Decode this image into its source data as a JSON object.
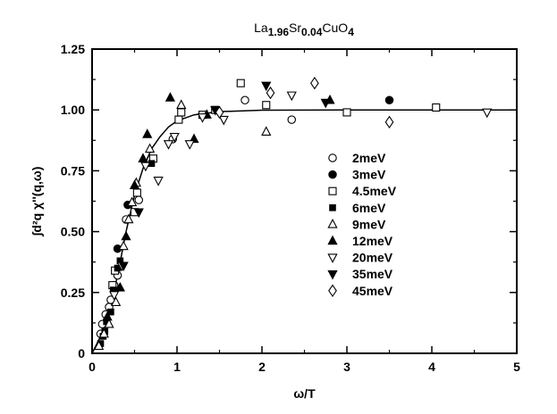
{
  "chart_data": {
    "type": "scatter",
    "title": {
      "parts": [
        {
          "text": "La",
          "sub": false
        },
        {
          "text": "1.96",
          "sub": true
        },
        {
          "text": "Sr",
          "sub": false
        },
        {
          "text": "0.04",
          "sub": true
        },
        {
          "text": "CuO",
          "sub": false
        },
        {
          "text": "4",
          "sub": true
        }
      ]
    },
    "xlabel": "ω/T",
    "ylabel": "∫d²q χ''(q,ω)",
    "xlim": [
      0,
      5
    ],
    "ylim": [
      0,
      1.25
    ],
    "x_ticks": [
      "0",
      "1",
      "2",
      "3",
      "4",
      "5"
    ],
    "y_ticks": [
      "0",
      "0.25",
      "0.50",
      "0.75",
      "1.00",
      "1.25"
    ],
    "grid": false,
    "legend_position": "right",
    "fit_curve": {
      "points": [
        [
          0,
          0
        ],
        [
          0.1,
          0.07
        ],
        [
          0.2,
          0.17
        ],
        [
          0.3,
          0.32
        ],
        [
          0.4,
          0.5
        ],
        [
          0.5,
          0.65
        ],
        [
          0.6,
          0.76
        ],
        [
          0.7,
          0.84
        ],
        [
          0.8,
          0.89
        ],
        [
          0.9,
          0.93
        ],
        [
          1.0,
          0.955
        ],
        [
          1.2,
          0.98
        ],
        [
          1.5,
          0.993
        ],
        [
          2.0,
          0.999
        ],
        [
          3.0,
          1.0
        ],
        [
          4.0,
          1.0
        ],
        [
          5.0,
          1.0
        ]
      ]
    },
    "series": [
      {
        "name": "2meV",
        "marker": "circle-open",
        "points": [
          [
            0.1,
            0.08
          ],
          [
            0.12,
            0.12
          ],
          [
            0.16,
            0.16
          ],
          [
            0.2,
            0.19
          ],
          [
            0.22,
            0.22
          ],
          [
            0.26,
            0.28
          ],
          [
            0.3,
            0.32
          ],
          [
            0.4,
            0.55
          ],
          [
            0.55,
            0.63
          ],
          [
            0.95,
            0.88
          ],
          [
            1.8,
            1.04
          ],
          [
            2.35,
            0.96
          ]
        ]
      },
      {
        "name": "3meV",
        "marker": "circle-filled",
        "points": [
          [
            0.3,
            0.43
          ],
          [
            0.42,
            0.61
          ],
          [
            3.5,
            1.04
          ]
        ]
      },
      {
        "name": "4.5meV",
        "marker": "square-open",
        "points": [
          [
            0.24,
            0.28
          ],
          [
            0.27,
            0.34
          ],
          [
            0.5,
            0.58
          ],
          [
            0.53,
            0.66
          ],
          [
            0.72,
            0.8
          ],
          [
            1.02,
            0.96
          ],
          [
            1.05,
            0.99
          ],
          [
            1.3,
            0.98
          ],
          [
            1.45,
            1.0
          ],
          [
            1.75,
            1.11
          ],
          [
            2.05,
            1.02
          ],
          [
            3.0,
            0.99
          ],
          [
            4.05,
            1.01
          ]
        ]
      },
      {
        "name": "6meV",
        "marker": "square-filled",
        "points": [
          [
            0.1,
            0.04
          ],
          [
            0.13,
            0.07
          ],
          [
            0.15,
            0.09
          ],
          [
            0.17,
            0.13
          ],
          [
            0.22,
            0.17
          ],
          [
            0.25,
            0.26
          ],
          [
            0.3,
            0.35
          ],
          [
            0.33,
            0.38
          ],
          [
            0.7,
            0.78
          ]
        ]
      },
      {
        "name": "9meV",
        "marker": "triangle-up-open",
        "points": [
          [
            0.08,
            0.03
          ],
          [
            0.14,
            0.08
          ],
          [
            0.2,
            0.12
          ],
          [
            0.28,
            0.21
          ],
          [
            0.37,
            0.44
          ],
          [
            0.43,
            0.55
          ],
          [
            0.47,
            0.62
          ],
          [
            0.52,
            0.7
          ],
          [
            0.68,
            0.84
          ],
          [
            1.05,
            1.02
          ],
          [
            2.05,
            0.91
          ]
        ]
      },
      {
        "name": "12meV",
        "marker": "triangle-up-filled",
        "points": [
          [
            0.18,
            0.15
          ],
          [
            0.33,
            0.27
          ],
          [
            0.4,
            0.48
          ],
          [
            0.5,
            0.69
          ],
          [
            0.6,
            0.8
          ],
          [
            0.65,
            0.9
          ],
          [
            0.92,
            1.05
          ],
          [
            1.2,
            0.88
          ],
          [
            1.35,
            0.98
          ],
          [
            2.8,
            1.04
          ]
        ]
      },
      {
        "name": "20meV",
        "marker": "triangle-down-open",
        "points": [
          [
            0.26,
            0.24
          ],
          [
            0.35,
            0.36
          ],
          [
            0.63,
            0.77
          ],
          [
            0.78,
            0.71
          ],
          [
            0.9,
            0.86
          ],
          [
            0.97,
            0.89
          ],
          [
            1.15,
            0.86
          ],
          [
            1.3,
            0.97
          ],
          [
            1.55,
            0.96
          ],
          [
            2.35,
            1.06
          ],
          [
            4.65,
            0.99
          ]
        ]
      },
      {
        "name": "35meV",
        "marker": "triangle-down-filled",
        "points": [
          [
            0.37,
            0.36
          ],
          [
            0.55,
            0.58
          ],
          [
            1.45,
            1.0
          ],
          [
            2.05,
            1.1
          ],
          [
            2.75,
            1.03
          ]
        ]
      },
      {
        "name": "45meV",
        "marker": "diamond-open",
        "points": [
          [
            1.5,
            0.99
          ],
          [
            2.1,
            1.07
          ],
          [
            2.62,
            1.11
          ],
          [
            3.5,
            0.95
          ]
        ]
      }
    ]
  }
}
